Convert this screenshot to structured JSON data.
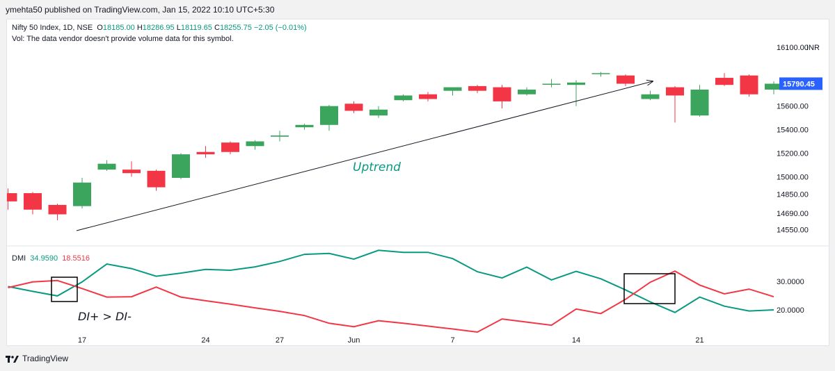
{
  "header": {
    "published_by": "ymehta50 published on TradingView.com, Jan 15, 2022 10:10 UTC+5:30"
  },
  "legend": {
    "symbol": "Nifty 50 Index, 1D, NSE",
    "o_label": "O",
    "o_value": "18185.00",
    "h_label": "H",
    "h_value": "18286.95",
    "l_label": "L",
    "l_value": "18119.65",
    "c_label": "C",
    "c_value": "18255.75",
    "change": "−2.05 (−0.01%)",
    "vol_note": "Vol: The data vendor doesn't provide volume data for this symbol."
  },
  "footer": {
    "brand": "TradingView"
  },
  "colors": {
    "up": "#3ba55d",
    "down": "#f23645",
    "di_plus": "#089981",
    "di_minus": "#f23645",
    "price_badge": "#2962ff"
  },
  "chart_data": [
    {
      "type": "candlestick",
      "title": "Nifty 50 Index, 1D, NSE",
      "currency": "INR",
      "y_tick_labels": [
        "16100.00",
        "15790.45",
        "15600.00",
        "15400.00",
        "15200.00",
        "15000.00",
        "14850.00",
        "14690.00",
        "14550.00"
      ],
      "y_ticks": [
        16100,
        15600,
        15400,
        15200,
        15000,
        14850,
        14690,
        14550
      ],
      "x_tick_labels": [
        "17",
        "24",
        "27",
        "Jun",
        "7",
        "14",
        "21"
      ],
      "last_price": "15790.45",
      "annotation": "Uptrend",
      "candles": [
        {
          "o": 14860,
          "h": 14900,
          "l": 14720,
          "c": 14790
        },
        {
          "o": 14860,
          "h": 14870,
          "l": 14680,
          "c": 14720
        },
        {
          "o": 14760,
          "h": 14770,
          "l": 14630,
          "c": 14680
        },
        {
          "o": 14750,
          "h": 14990,
          "l": 14730,
          "c": 14950
        },
        {
          "o": 15060,
          "h": 15140,
          "l": 15050,
          "c": 15110
        },
        {
          "o": 15060,
          "h": 15130,
          "l": 15000,
          "c": 15030
        },
        {
          "o": 15050,
          "h": 15060,
          "l": 14880,
          "c": 14910
        },
        {
          "o": 14990,
          "h": 15200,
          "l": 14980,
          "c": 15190
        },
        {
          "o": 15210,
          "h": 15260,
          "l": 15160,
          "c": 15190
        },
        {
          "o": 15290,
          "h": 15300,
          "l": 15190,
          "c": 15210
        },
        {
          "o": 15260,
          "h": 15310,
          "l": 15230,
          "c": 15300
        },
        {
          "o": 15340,
          "h": 15390,
          "l": 15300,
          "c": 15350
        },
        {
          "o": 15420,
          "h": 15450,
          "l": 15400,
          "c": 15440
        },
        {
          "o": 15440,
          "h": 15610,
          "l": 15390,
          "c": 15600
        },
        {
          "o": 15620,
          "h": 15640,
          "l": 15540,
          "c": 15560
        },
        {
          "o": 15520,
          "h": 15600,
          "l": 15500,
          "c": 15570
        },
        {
          "o": 15650,
          "h": 15700,
          "l": 15640,
          "c": 15690
        },
        {
          "o": 15700,
          "h": 15720,
          "l": 15640,
          "c": 15660
        },
        {
          "o": 15730,
          "h": 15760,
          "l": 15690,
          "c": 15760
        },
        {
          "o": 15770,
          "h": 15780,
          "l": 15710,
          "c": 15730
        },
        {
          "o": 15760,
          "h": 15780,
          "l": 15580,
          "c": 15640
        },
        {
          "o": 15700,
          "h": 15760,
          "l": 15690,
          "c": 15740
        },
        {
          "o": 15790,
          "h": 15830,
          "l": 15760,
          "c": 15790
        },
        {
          "o": 15780,
          "h": 15820,
          "l": 15600,
          "c": 15800
        },
        {
          "o": 15880,
          "h": 15890,
          "l": 15850,
          "c": 15880
        },
        {
          "o": 15860,
          "h": 15870,
          "l": 15770,
          "c": 15790
        },
        {
          "o": 15660,
          "h": 15730,
          "l": 15650,
          "c": 15700
        },
        {
          "o": 15760,
          "h": 15770,
          "l": 15460,
          "c": 15690
        },
        {
          "o": 15520,
          "h": 15780,
          "l": 15510,
          "c": 15740
        },
        {
          "o": 15840,
          "h": 15880,
          "l": 15770,
          "c": 15780
        },
        {
          "o": 15860,
          "h": 15870,
          "l": 15680,
          "c": 15700
        },
        {
          "o": 15740,
          "h": 15810,
          "l": 15700,
          "c": 15790
        }
      ]
    },
    {
      "type": "line",
      "title": "DMI",
      "di_plus_label": "34.9590",
      "di_minus_label": "18.5516",
      "y_tick_labels": [
        "30.0000",
        "20.0000"
      ],
      "y_ticks": [
        30,
        20
      ],
      "annotation": "DI+ > DI-",
      "series": [
        {
          "name": "DI+",
          "values": [
            28.2,
            26.5,
            24.9,
            29.8,
            36.1,
            34.5,
            31.8,
            32.9,
            34.2,
            33.9,
            35.1,
            37.0,
            39.5,
            39.8,
            37.8,
            40.9,
            40.2,
            40.2,
            38.0,
            33.4,
            31.2,
            35.0,
            30.5,
            33.5,
            30.9,
            27.0,
            22.8,
            19.1,
            24.5,
            21.3,
            19.6,
            20.0
          ]
        },
        {
          "name": "DI-",
          "values": [
            27.8,
            29.8,
            30.3,
            27.5,
            24.5,
            24.6,
            28.0,
            24.5,
            23.2,
            22.0,
            20.7,
            19.5,
            18.0,
            15.3,
            14.1,
            16.2,
            15.3,
            14.3,
            13.3,
            12.2,
            16.8,
            15.7,
            14.6,
            20.3,
            18.7,
            23.7,
            29.7,
            33.6,
            28.7,
            25.6,
            27.3,
            24.6
          ]
        }
      ]
    }
  ]
}
